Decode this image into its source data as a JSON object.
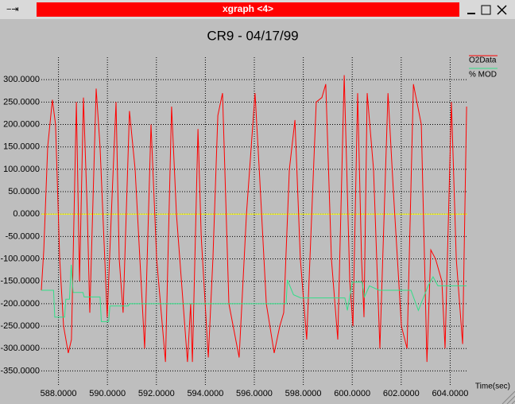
{
  "window_title": "xgraph <4>",
  "chart_data": {
    "type": "line",
    "title": "CR9 - 04/17/99",
    "x_label": "Time(sec)",
    "xlim": [
      587.3,
      604.7
    ],
    "ylim": [
      -383,
      350
    ],
    "xticks": [
      {
        "value": 588,
        "label": "588.0000"
      },
      {
        "value": 590,
        "label": "590.0000"
      },
      {
        "value": 592,
        "label": "592.0000"
      },
      {
        "value": 594,
        "label": "594.0000"
      },
      {
        "value": 596,
        "label": "596.0000"
      },
      {
        "value": 598,
        "label": "598.0000"
      },
      {
        "value": 600,
        "label": "600.0000"
      },
      {
        "value": 602,
        "label": "602.0000"
      },
      {
        "value": 604,
        "label": "604.0000"
      }
    ],
    "yticks": [
      {
        "value": 300,
        "label": "300.0000"
      },
      {
        "value": 250,
        "label": "250.0000"
      },
      {
        "value": 200,
        "label": "200.0000"
      },
      {
        "value": 150,
        "label": "150.0000"
      },
      {
        "value": 100,
        "label": "100.0000"
      },
      {
        "value": 50,
        "label": "50.0000"
      },
      {
        "value": 0,
        "label": "0.0000"
      },
      {
        "value": -50,
        "label": "-50.0000"
      },
      {
        "value": -100,
        "label": "-100.0000"
      },
      {
        "value": -150,
        "label": "-150.0000"
      },
      {
        "value": -200,
        "label": "-200.0000"
      },
      {
        "value": -250,
        "label": "-250.0000"
      },
      {
        "value": -300,
        "label": "-300.0000"
      },
      {
        "value": -350,
        "label": "-350.0000"
      }
    ],
    "grid": true,
    "zero_line_color": "#ffff00",
    "legend": "top-right",
    "series": [
      {
        "name": "O2Data",
        "color": "#ff0000",
        "x": [
          587.3,
          587.4,
          587.56,
          587.75,
          587.88,
          588.05,
          588.21,
          588.4,
          588.53,
          588.73,
          588.86,
          589.02,
          589.18,
          589.28,
          589.54,
          589.7,
          589.99,
          590.16,
          590.35,
          590.48,
          590.64,
          590.9,
          591.13,
          591.52,
          591.78,
          592.01,
          592.37,
          592.62,
          592.82,
          593.27,
          593.4,
          593.47,
          593.7,
          593.83,
          594.12,
          594.31,
          594.51,
          594.7,
          594.96,
          595.38,
          595.68,
          596.03,
          596.2,
          596.49,
          596.81,
          597.04,
          597.2,
          597.43,
          597.66,
          597.88,
          598.14,
          598.53,
          598.76,
          598.92,
          599.15,
          599.41,
          599.67,
          599.9,
          600.03,
          600.22,
          600.38,
          600.48,
          600.61,
          600.87,
          601.13,
          601.46,
          601.68,
          602.01,
          602.24,
          602.5,
          602.82,
          603.05,
          603.21,
          603.4,
          603.66,
          603.79,
          604.05,
          604.25,
          604.51,
          604.67
        ],
        "values": [
          -170,
          -80,
          150,
          255,
          200,
          -100,
          -250,
          -310,
          -280,
          250,
          -150,
          260,
          0,
          -220,
          280,
          150,
          -230,
          0,
          250,
          -100,
          -220,
          230,
          100,
          -300,
          200,
          -100,
          -330,
          240,
          0,
          -330,
          -200,
          -330,
          190,
          -50,
          -320,
          -100,
          220,
          270,
          -200,
          -320,
          0,
          270,
          100,
          -200,
          -310,
          -250,
          -220,
          100,
          210,
          -100,
          -280,
          250,
          260,
          290,
          -100,
          -280,
          310,
          -150,
          -250,
          270,
          -100,
          -230,
          270,
          100,
          -300,
          270,
          50,
          -250,
          -300,
          290,
          200,
          -330,
          -80,
          -100,
          -150,
          -300,
          250,
          -100,
          -290,
          240
        ]
      },
      {
        "name": "% MOD",
        "color": "#33dd88",
        "x": [
          587.3,
          587.8,
          587.85,
          588.25,
          588.3,
          588.45,
          588.52,
          588.6,
          589.0,
          589.05,
          589.7,
          589.75,
          590.05,
          590.1,
          590.85,
          590.9,
          597.3,
          597.35,
          597.6,
          597.9,
          599.7,
          599.8,
          600.0,
          600.4,
          600.5,
          600.7,
          601.1,
          602.4,
          602.7,
          603.1,
          603.3,
          603.5,
          604.67
        ],
        "values": [
          -170,
          -170,
          -230,
          -230,
          -190,
          -190,
          -113,
          -175,
          -175,
          -185,
          -185,
          -240,
          -240,
          -205,
          -205,
          -200,
          -200,
          -147,
          -180,
          -187,
          -187,
          -215,
          -152,
          -152,
          -185,
          -160,
          -170,
          -170,
          -215,
          -160,
          -140,
          -160,
          -160
        ]
      }
    ]
  }
}
